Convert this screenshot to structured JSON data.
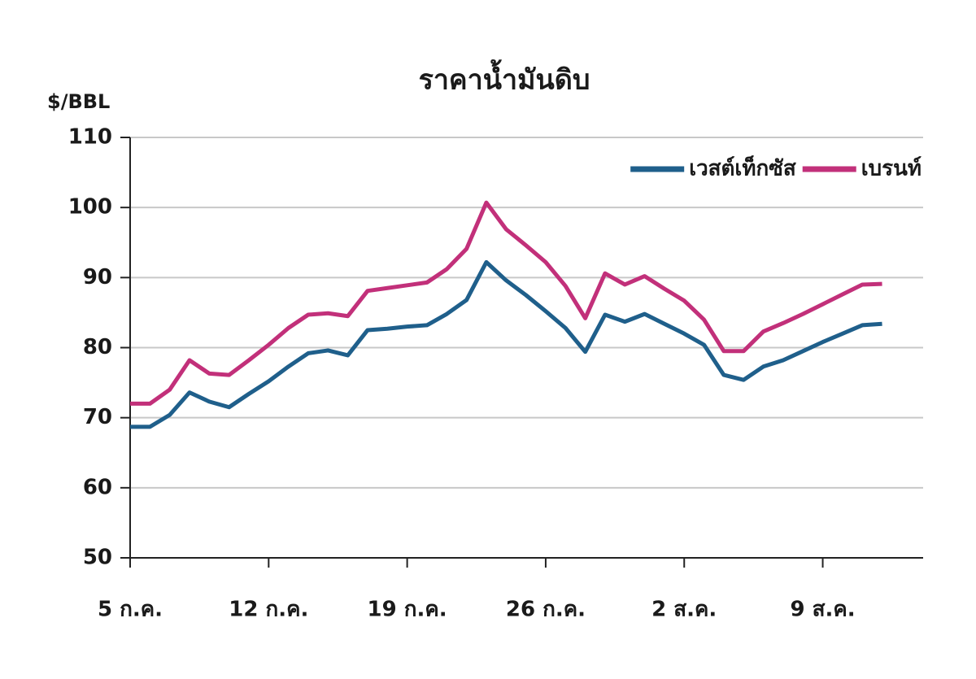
{
  "chart_data": {
    "type": "line",
    "title": "ราคาน้ำมันดิบ",
    "y_label": "$/BBL",
    "categories": [
      "5 ก.ค.",
      null,
      null,
      null,
      null,
      null,
      null,
      "12 ก.ค.",
      null,
      null,
      null,
      null,
      null,
      null,
      "19 ก.ค.",
      null,
      null,
      null,
      null,
      null,
      null,
      "26 ก.ค.",
      null,
      null,
      null,
      null,
      null,
      null,
      "2 ส.ค.",
      null,
      null,
      null,
      null,
      null,
      null,
      "9 ส.ค.",
      null,
      null,
      null
    ],
    "series": [
      {
        "name": "เวสต์เท็กซัส",
        "color": "#1f5f8b",
        "values": [
          68.7,
          68.7,
          70.4,
          73.6,
          72.3,
          71.5,
          73.4,
          75.2,
          77.3,
          79.2,
          79.6,
          78.9,
          82.5,
          82.7,
          83.0,
          83.2,
          84.8,
          86.8,
          92.2,
          89.6,
          87.5,
          85.2,
          82.8,
          79.4,
          84.7,
          83.7,
          84.8,
          83.4,
          82.0,
          80.4,
          76.1,
          75.4,
          77.3,
          78.2,
          79.5,
          80.8,
          82.0,
          83.2,
          83.4
        ]
      },
      {
        "name": "เบรนท์",
        "color": "#c2307a",
        "values": [
          72.0,
          72.0,
          74.0,
          78.2,
          76.3,
          76.1,
          78.2,
          80.4,
          82.8,
          84.7,
          84.9,
          84.5,
          88.1,
          88.5,
          88.9,
          89.3,
          91.2,
          94.1,
          100.7,
          96.9,
          94.6,
          92.2,
          88.8,
          84.2,
          90.6,
          89.0,
          90.2,
          88.4,
          86.7,
          84.0,
          79.5,
          79.5,
          82.3,
          83.5,
          84.8,
          86.2,
          87.6,
          89.0,
          89.1
        ]
      }
    ],
    "ylim": [
      50,
      110
    ],
    "yticks": [
      50,
      60,
      70,
      80,
      90,
      100,
      110
    ],
    "grid": true,
    "legend": "top-right"
  }
}
